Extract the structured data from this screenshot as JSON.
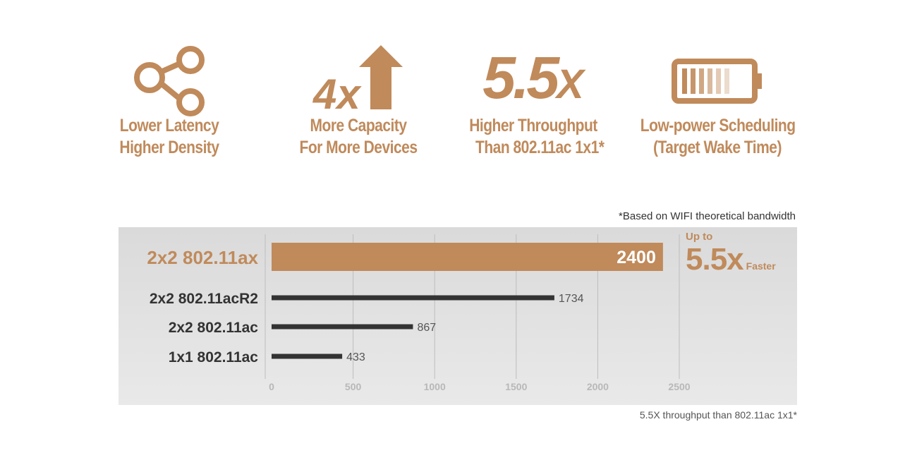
{
  "features": [
    {
      "icon": "share-icon",
      "lines": [
        "Lower Latency",
        "Higher Density"
      ]
    },
    {
      "icon": "4x-arrow-icon",
      "icon_text": "4x",
      "lines": [
        "More Capacity",
        "For More Devices"
      ]
    },
    {
      "icon": "5-5x-text",
      "icon_text": "5.5",
      "icon_suffix": "X",
      "lines": [
        "Higher Throughput",
        "Than 802.11ac 1x1*"
      ]
    },
    {
      "icon": "battery-icon",
      "lines": [
        "Low-power Scheduling",
        "(Target Wake Time)"
      ]
    }
  ],
  "note_top": "*Based on WIFI theoretical bandwidth",
  "note_bottom": "5.5X throughput than 802.11ac 1x1*",
  "callout": {
    "upto": "Up to",
    "multiplier": "5.5x",
    "faster": "Faster"
  },
  "colors": {
    "accent": "#c08a5b",
    "bar_dark": "#333333",
    "panel": "#e0e0e0"
  },
  "chart_data": {
    "type": "bar",
    "orientation": "horizontal",
    "categories": [
      "2x2 802.11ax",
      "2x2 802.11acR2",
      "2x2 802.11ac",
      "1x1 802.11ac"
    ],
    "values": [
      2400,
      1734,
      867,
      433
    ],
    "value_labels": [
      "2400",
      "1734",
      "867",
      "433"
    ],
    "highlight": "2x2 802.11ax",
    "xlim": [
      0,
      2500
    ],
    "xticks": [
      0,
      500,
      1000,
      1500,
      2000,
      2500
    ],
    "grid": true
  }
}
